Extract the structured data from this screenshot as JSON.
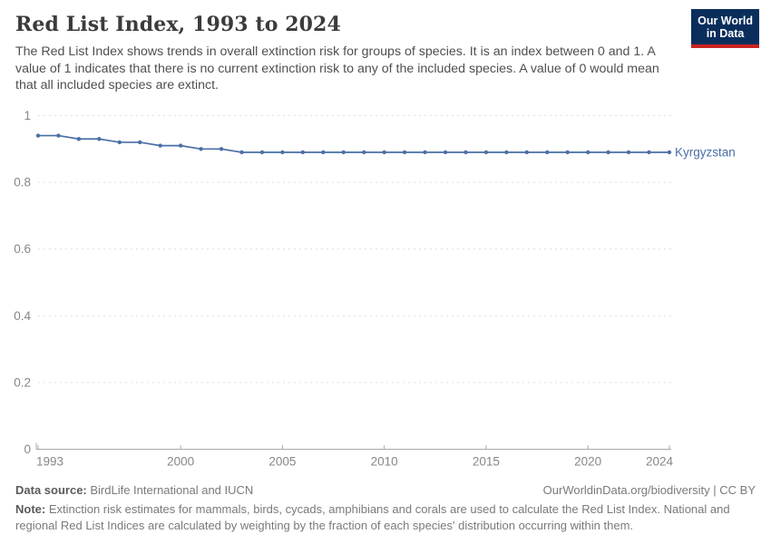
{
  "header": {
    "title": "Red List Index, 1993 to 2024",
    "subtitle": "The Red List Index shows trends in overall extinction risk for groups of species. It is an index between 0 and 1. A value of 1 indicates that there is no current extinction risk to any of the included species. A value of 0 would mean that all included species are extinct.",
    "logo": {
      "line1": "Our World",
      "line2": "in Data",
      "background_color": "#0a2e5c",
      "accent_color": "#c82421"
    }
  },
  "chart_data": {
    "type": "line",
    "title": "Red List Index, 1993 to 2024",
    "xlabel": "",
    "ylabel": "",
    "xlim": [
      1993,
      2024
    ],
    "ylim": [
      0,
      1
    ],
    "x_ticks": [
      1993,
      2000,
      2005,
      2010,
      2015,
      2020,
      2024
    ],
    "y_ticks": [
      0,
      0.2,
      0.4,
      0.6,
      0.8,
      1
    ],
    "grid": "horizontal-dashed",
    "legend_position": "end-of-line-label",
    "colors": {
      "grid": "#dcdcdc",
      "axis": "#a8a8a8",
      "tick_label": "#878787"
    },
    "series": [
      {
        "name": "Kyrgyzstan",
        "color": "#4a6fa5",
        "x": [
          1993,
          1994,
          1995,
          1996,
          1997,
          1998,
          1999,
          2000,
          2001,
          2002,
          2003,
          2004,
          2005,
          2006,
          2007,
          2008,
          2009,
          2010,
          2011,
          2012,
          2013,
          2014,
          2015,
          2016,
          2017,
          2018,
          2019,
          2020,
          2021,
          2022,
          2023,
          2024
        ],
        "values": [
          0.94,
          0.94,
          0.93,
          0.93,
          0.92,
          0.92,
          0.91,
          0.91,
          0.9,
          0.9,
          0.89,
          0.89,
          0.89,
          0.89,
          0.89,
          0.89,
          0.89,
          0.89,
          0.89,
          0.89,
          0.89,
          0.89,
          0.89,
          0.89,
          0.89,
          0.89,
          0.89,
          0.89,
          0.89,
          0.89,
          0.89,
          0.89
        ]
      }
    ]
  },
  "footer": {
    "datasource_label": "Data source:",
    "datasource_value": " BirdLife International and IUCN",
    "attribution": "OurWorldinData.org/biodiversity | CC BY",
    "note_label": "Note:",
    "note_value": " Extinction risk estimates for mammals, birds, cycads, amphibians and corals are used to calculate the Red List Index. National and regional Red List Indices are calculated by weighting by the fraction of each species' distribution occurring within them."
  }
}
